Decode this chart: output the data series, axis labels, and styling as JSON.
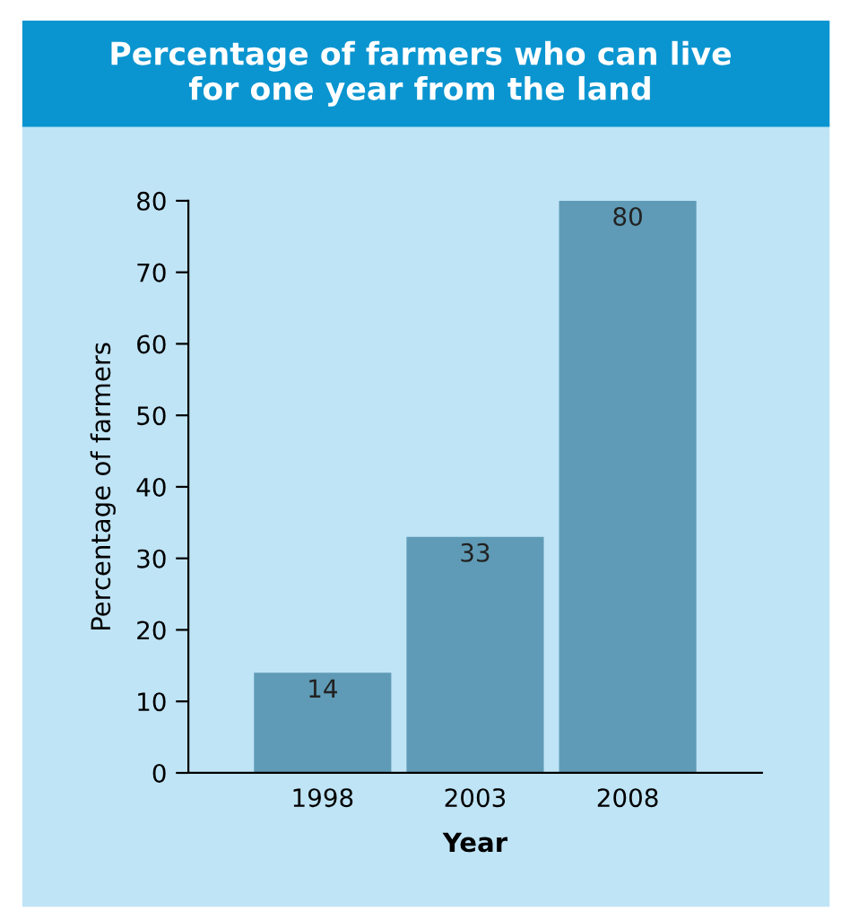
{
  "chart_data": {
    "type": "bar",
    "title": "Percentage of farmers who can live\nfor one year from the land",
    "xlabel": "Year",
    "ylabel": "Percentage of farmers",
    "categories": [
      "1998",
      "2003",
      "2008"
    ],
    "values": [
      14,
      33,
      80
    ],
    "color": "#5f9bb6",
    "ylim": [
      0,
      80
    ],
    "yticks": [
      0,
      10,
      20,
      30,
      40,
      50,
      60,
      70,
      80
    ],
    "grid": false,
    "data_labels": true
  }
}
